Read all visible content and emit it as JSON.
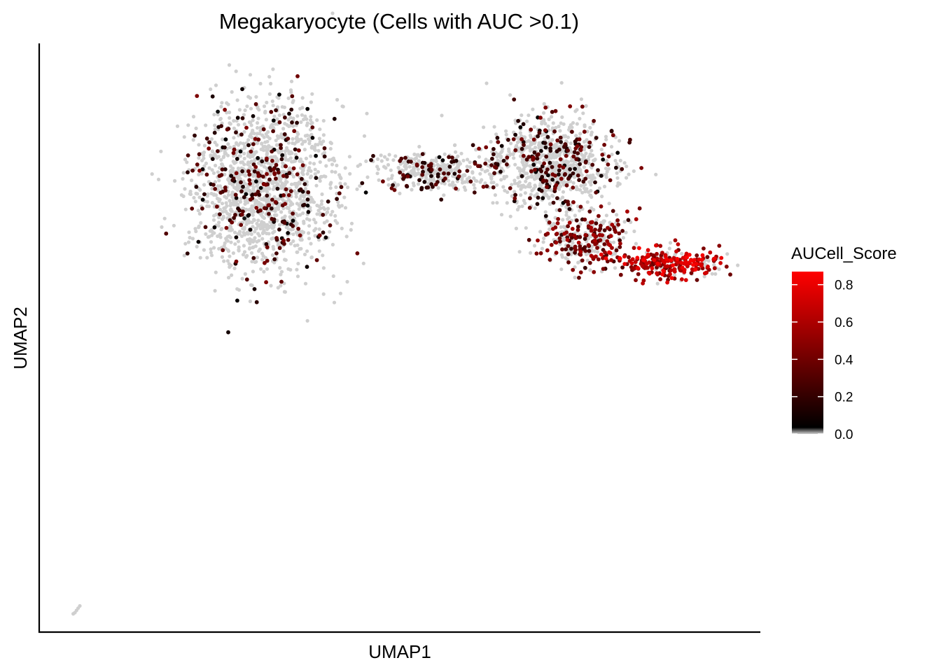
{
  "chart_data": {
    "type": "scatter",
    "title": "Megakaryocyte (Cells with AUC >0.1)",
    "xlabel": "UMAP1",
    "ylabel": "UMAP2",
    "ticks_shown": false,
    "grid": false,
    "legend": {
      "title": "AUCell_Score",
      "placement": "right",
      "ticks": [
        "0.0",
        "0.2",
        "0.4",
        "0.6",
        "0.8"
      ],
      "tick_values": [
        0.0,
        0.2,
        0.4,
        0.6,
        0.8
      ],
      "range": [
        0.0,
        0.87
      ],
      "colors": [
        "#cfcfcf",
        "#000000",
        "#ff0000"
      ]
    },
    "xlim": [
      -12,
      10
    ],
    "ylim": [
      -16,
      10
    ],
    "series": [
      {
        "description_points": "clusters of cells (sampled)",
        "clusters": [
          {
            "cx": -5.2,
            "cy": 3.6,
            "sx": 1.6,
            "sy": 2.6,
            "n": 1600,
            "score_mean": 0.05,
            "score_max": 0.45
          },
          {
            "cx": 3.6,
            "cy": 4.8,
            "sx": 1.4,
            "sy": 1.4,
            "n": 900,
            "score_mean": 0.08,
            "score_max": 0.45
          },
          {
            "cx": 0.0,
            "cy": 4.4,
            "sx": 1.2,
            "sy": 0.6,
            "n": 320,
            "score_mean": 0.08,
            "score_max": 0.4
          },
          {
            "cx": 4.6,
            "cy": 1.4,
            "sx": 1.0,
            "sy": 0.9,
            "n": 330,
            "score_mean": 0.35,
            "score_max": 0.6
          },
          {
            "cx": 7.2,
            "cy": 0.3,
            "sx": 1.2,
            "sy": 0.5,
            "n": 300,
            "score_mean": 0.6,
            "score_max": 0.87
          }
        ],
        "outlier_points": [
          {
            "x": -10.9,
            "y": -15.1,
            "score": 0.0
          },
          {
            "x": -10.95,
            "y": -15.2,
            "score": 0.0
          },
          {
            "x": -10.85,
            "y": -15.0,
            "score": 0.0
          },
          {
            "x": -10.8,
            "y": -14.9,
            "score": 0.0
          },
          {
            "x": -11.0,
            "y": -15.25,
            "score": 0.0
          }
        ]
      }
    ]
  }
}
